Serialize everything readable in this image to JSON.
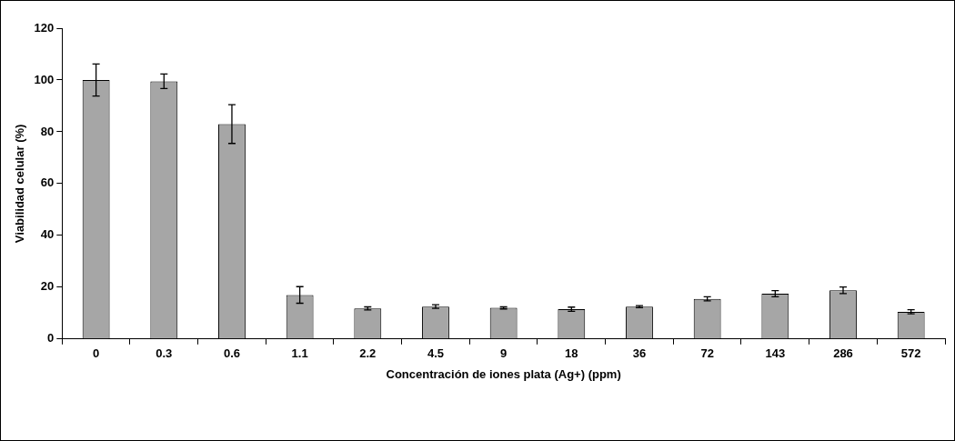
{
  "chart_data": {
    "type": "bar",
    "xlabel": "Concentración de iones plata (Ag+) (ppm)",
    "ylabel": "Viabilidad celular (%)",
    "categories": [
      "0",
      "0.3",
      "0.6",
      "1.1",
      "2.2",
      "4.5",
      "9",
      "18",
      "36",
      "72",
      "143",
      "286",
      "572"
    ],
    "values": [
      100,
      99.5,
      83,
      17,
      11.8,
      12.5,
      12,
      11.5,
      12.5,
      15.5,
      17.5,
      18.8,
      10.5
    ],
    "errors": [
      6.2,
      2.8,
      7.5,
      3.2,
      0.6,
      0.7,
      0.4,
      0.8,
      0.4,
      0.8,
      1.2,
      1.3,
      0.8
    ],
    "color": "#a6a6a6",
    "ylim": [
      0,
      120
    ],
    "yticks": [
      0,
      20,
      40,
      60,
      80,
      100,
      120
    ],
    "grid": false,
    "legend": false
  }
}
